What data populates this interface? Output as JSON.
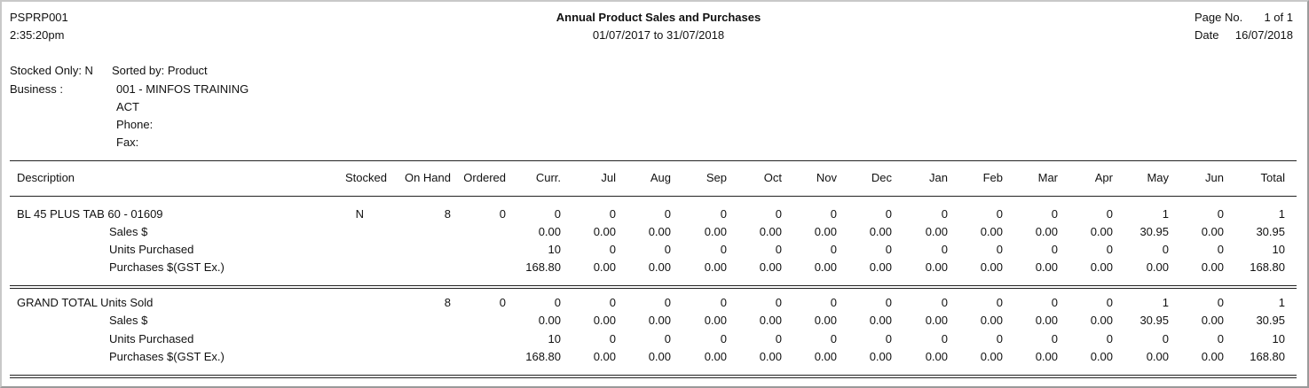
{
  "header": {
    "report_code": "PSPRP001",
    "time": "2:35:20pm",
    "title": "Annual Product Sales and Purchases",
    "date_range": "01/07/2017 to 31/07/2018",
    "page_label": "Page No.",
    "page_value": "1 of 1",
    "date_label": "Date",
    "date_value": "16/07/2018"
  },
  "filters": {
    "stocked_only": "Stocked Only: N",
    "sorted_by": "Sorted by: Product",
    "business_label": "Business :",
    "business_name": "001 - MINFOS TRAINING",
    "state": "ACT",
    "phone_label": "Phone:",
    "fax_label": "Fax:"
  },
  "columns": {
    "description": "Description",
    "stocked": "Stocked",
    "on_hand": "On Hand",
    "ordered": "Ordered",
    "curr": "Curr.",
    "jul": "Jul",
    "aug": "Aug",
    "sep": "Sep",
    "oct": "Oct",
    "nov": "Nov",
    "dec": "Dec",
    "jan": "Jan",
    "feb": "Feb",
    "mar": "Mar",
    "apr": "Apr",
    "may": "May",
    "jun": "Jun",
    "total": "Total"
  },
  "product": {
    "name": "BL 45 PLUS TAB 60 - 01609",
    "stocked": "N",
    "on_hand": "8",
    "ordered": "0",
    "units_sold": [
      "0",
      "0",
      "0",
      "0",
      "0",
      "0",
      "0",
      "0",
      "0",
      "0",
      "0",
      "1",
      "0",
      "1"
    ],
    "sales_label": "Sales $",
    "sales": [
      "0.00",
      "0.00",
      "0.00",
      "0.00",
      "0.00",
      "0.00",
      "0.00",
      "0.00",
      "0.00",
      "0.00",
      "0.00",
      "30.95",
      "0.00",
      "30.95"
    ],
    "units_purchased_label": "Units Purchased",
    "units_purchased": [
      "10",
      "0",
      "0",
      "0",
      "0",
      "0",
      "0",
      "0",
      "0",
      "0",
      "0",
      "0",
      "0",
      "10"
    ],
    "purchases_label": "Purchases $(GST Ex.)",
    "purchases": [
      "168.80",
      "0.00",
      "0.00",
      "0.00",
      "0.00",
      "0.00",
      "0.00",
      "0.00",
      "0.00",
      "0.00",
      "0.00",
      "0.00",
      "0.00",
      "168.80"
    ]
  },
  "grand_total": {
    "label": "GRAND TOTAL Units Sold",
    "on_hand": "8",
    "ordered": "0",
    "units_sold": [
      "0",
      "0",
      "0",
      "0",
      "0",
      "0",
      "0",
      "0",
      "0",
      "0",
      "0",
      "1",
      "0",
      "1"
    ],
    "sales_label": "Sales $",
    "sales": [
      "0.00",
      "0.00",
      "0.00",
      "0.00",
      "0.00",
      "0.00",
      "0.00",
      "0.00",
      "0.00",
      "0.00",
      "0.00",
      "30.95",
      "0.00",
      "30.95"
    ],
    "units_purchased_label": "Units Purchased",
    "units_purchased": [
      "10",
      "0",
      "0",
      "0",
      "0",
      "0",
      "0",
      "0",
      "0",
      "0",
      "0",
      "0",
      "0",
      "10"
    ],
    "purchases_label": "Purchases $(GST Ex.)",
    "purchases": [
      "168.80",
      "0.00",
      "0.00",
      "0.00",
      "0.00",
      "0.00",
      "0.00",
      "0.00",
      "0.00",
      "0.00",
      "0.00",
      "0.00",
      "0.00",
      "168.80"
    ]
  }
}
